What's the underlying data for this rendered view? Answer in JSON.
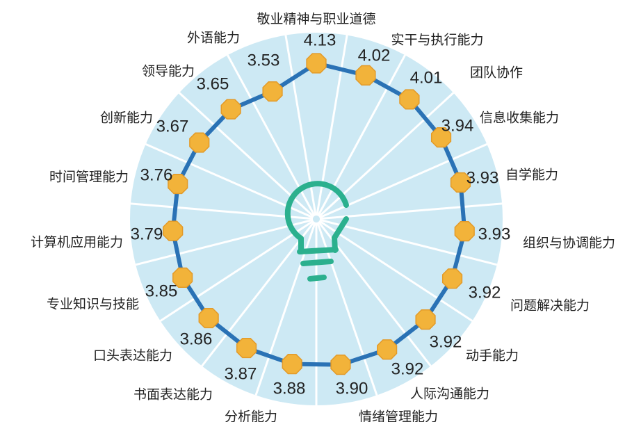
{
  "chart_data": {
    "type": "radar",
    "title": "",
    "categories": [
      "敬业精神与职业道德",
      "实干与执行能力",
      "团队协作",
      "信息收集能力",
      "自学能力",
      "组织与协调能力",
      "问题解决能力",
      "动手能力",
      "人际沟通能力",
      "情绪管理能力",
      "分析能力",
      "书面表达能力",
      "口头表达能力",
      "专业知识与技能",
      "计算机应用能力",
      "时间管理能力",
      "创新能力",
      "领导能力",
      "外语能力"
    ],
    "values": [
      4.13,
      4.02,
      4.01,
      3.94,
      3.93,
      3.93,
      3.92,
      3.92,
      3.92,
      3.9,
      3.88,
      3.87,
      3.86,
      3.85,
      3.79,
      3.76,
      3.67,
      3.65,
      3.53
    ],
    "value_labels": [
      "4.13",
      "4.02",
      "4.01",
      "3.94",
      "3.93",
      "3.93",
      "3.92",
      "3.92",
      "3.92",
      "3.90",
      "3.88",
      "3.87",
      "3.86",
      "3.85",
      "3.79",
      "3.76",
      "3.67",
      "3.65",
      "3.53"
    ],
    "colors": {
      "background_disc": "#cde9f4",
      "spokes": "#ffffff",
      "line": "#2a72b5",
      "markers": "#f2b33a",
      "marker_edge": "#e39a28",
      "icon": "#2bb08e"
    },
    "grid": false,
    "legend": "none"
  }
}
